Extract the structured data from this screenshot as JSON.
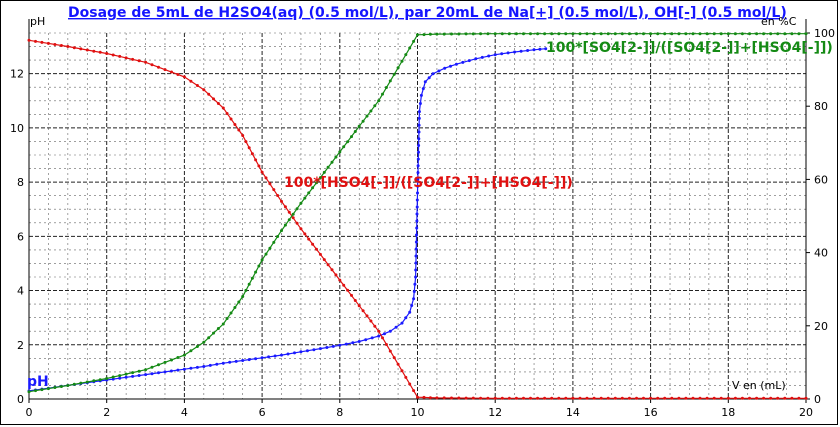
{
  "chart_data": {
    "type": "line",
    "title": "Dosage de 5mL de H2SO4(aq) (0.5 mol/L),  par 20mL  de Na[+] (0.5 mol/L), OH[-] (0.5 mol/L)",
    "xlabel": "V en (mL)",
    "ylabel_left": "pH",
    "ylabel_right": "en %C",
    "xlim": [
      0,
      20
    ],
    "ylim_left": [
      0,
      13.5
    ],
    "ylim_right": [
      0,
      100
    ],
    "x_ticks": [
      "0",
      "2",
      "4",
      "6",
      "8",
      "10",
      "12",
      "14",
      "16",
      "18",
      "20"
    ],
    "y_left_ticks": [
      "0",
      "2",
      "4",
      "6",
      "8",
      "10",
      "12"
    ],
    "y_right_ticks": [
      "0",
      "20",
      "40",
      "60",
      "80",
      "100"
    ],
    "grid": true,
    "series": [
      {
        "name": "pH",
        "axis": "left",
        "color": "#1a1aff",
        "x": [
          0,
          0.5,
          1,
          1.5,
          2,
          2.5,
          3,
          3.5,
          4,
          4.5,
          5,
          5.5,
          6,
          6.5,
          7,
          7.5,
          8,
          8.5,
          9,
          9.3,
          9.6,
          9.8,
          9.9,
          9.95,
          10.0,
          10.05,
          10.1,
          10.2,
          10.4,
          10.7,
          11,
          11.5,
          12,
          12.5,
          13,
          13.3
        ],
        "values": [
          0.3,
          0.4,
          0.5,
          0.6,
          0.7,
          0.8,
          0.9,
          1.0,
          1.1,
          1.2,
          1.32,
          1.42,
          1.52,
          1.62,
          1.74,
          1.86,
          1.98,
          2.12,
          2.32,
          2.5,
          2.8,
          3.2,
          3.7,
          4.5,
          7.6,
          10.6,
          11.2,
          11.7,
          12.0,
          12.2,
          12.35,
          12.55,
          12.7,
          12.8,
          12.88,
          12.92
        ]
      },
      {
        "name": "100*[HSO4[-]]/([SO4[2-]]+[HSO4[-]])",
        "axis": "right",
        "color": "#e01010",
        "x": [
          0,
          1,
          2,
          3,
          4,
          4.5,
          5,
          5.5,
          6,
          6.5,
          7,
          7.5,
          8,
          8.5,
          9,
          9.5,
          10,
          10.5,
          12,
          14,
          16,
          18,
          20
        ],
        "values": [
          98.0,
          96.3,
          94.4,
          92.0,
          88.0,
          84.5,
          79.5,
          72.0,
          62.0,
          54.0,
          46.5,
          39.5,
          32.5,
          25.5,
          18.5,
          9.5,
          0.5,
          0.3,
          0.2,
          0.2,
          0.2,
          0.2,
          0.2
        ]
      },
      {
        "name": "100*[SO4[2-]]/([SO4[2-]]+[HSO4[-]])",
        "axis": "right",
        "color": "#148a14",
        "x": [
          0,
          1,
          2,
          3,
          4,
          4.5,
          5,
          5.5,
          6,
          6.5,
          7,
          7.5,
          8,
          8.5,
          9,
          9.5,
          10,
          10.5,
          12,
          14,
          16,
          18,
          20
        ],
        "values": [
          2.0,
          3.7,
          5.6,
          8.0,
          12.0,
          15.5,
          20.5,
          28.0,
          38.0,
          46.0,
          53.5,
          60.5,
          67.5,
          74.5,
          81.5,
          90.5,
          99.5,
          99.7,
          99.8,
          99.8,
          99.8,
          99.8,
          99.8
        ]
      }
    ]
  }
}
